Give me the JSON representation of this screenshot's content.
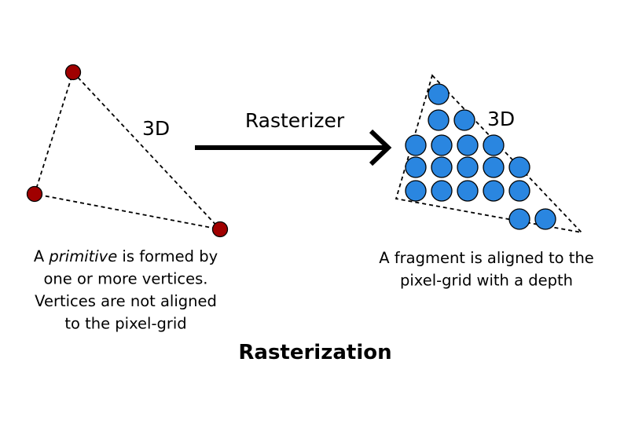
{
  "left": {
    "label": "3D",
    "caption_lines": [
      [
        {
          "text": "A "
        },
        {
          "text": "primitive",
          "italic": true
        },
        {
          "text": " is formed by"
        }
      ],
      [
        {
          "text": "one or more vertices."
        }
      ],
      [
        {
          "text": "Vertices are not aligned"
        }
      ],
      [
        {
          "text": "to the pixel-grid"
        }
      ]
    ],
    "vertex_color": "#a00000",
    "vertex_count": 3
  },
  "arrow": {
    "label": "Rasterizer"
  },
  "right": {
    "label": "3D",
    "caption_lines": [
      [
        {
          "text": "A fragment is aligned to the"
        }
      ],
      [
        {
          "text": "pixel-grid with a depth"
        }
      ]
    ],
    "fragment_color": "#2a86e0",
    "fragment_rows": [
      1,
      2,
      4,
      5,
      5,
      2
    ]
  },
  "title": "Rasterization"
}
